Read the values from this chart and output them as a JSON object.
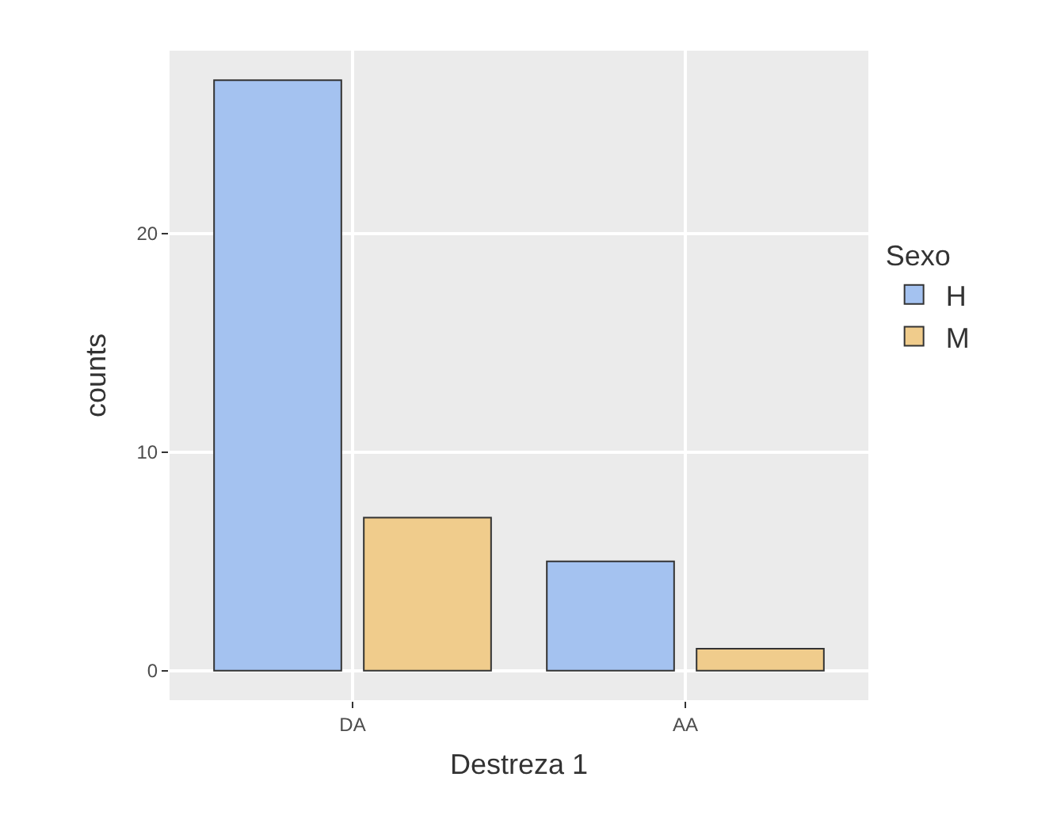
{
  "chart_data": {
    "type": "bar",
    "xlabel": "Destreza 1",
    "ylabel": "counts",
    "legend_title": "Sexo",
    "categories": [
      "DA",
      "AA"
    ],
    "series": [
      {
        "name": "H",
        "color": "#a4c2f0",
        "values": [
          27,
          5
        ]
      },
      {
        "name": "M",
        "color": "#f0cc8c",
        "values": [
          7,
          1
        ]
      }
    ],
    "ylim": [
      -1.35,
      28.35
    ],
    "yticks": [
      0,
      10,
      20
    ],
    "grid": true,
    "legend": "right"
  }
}
